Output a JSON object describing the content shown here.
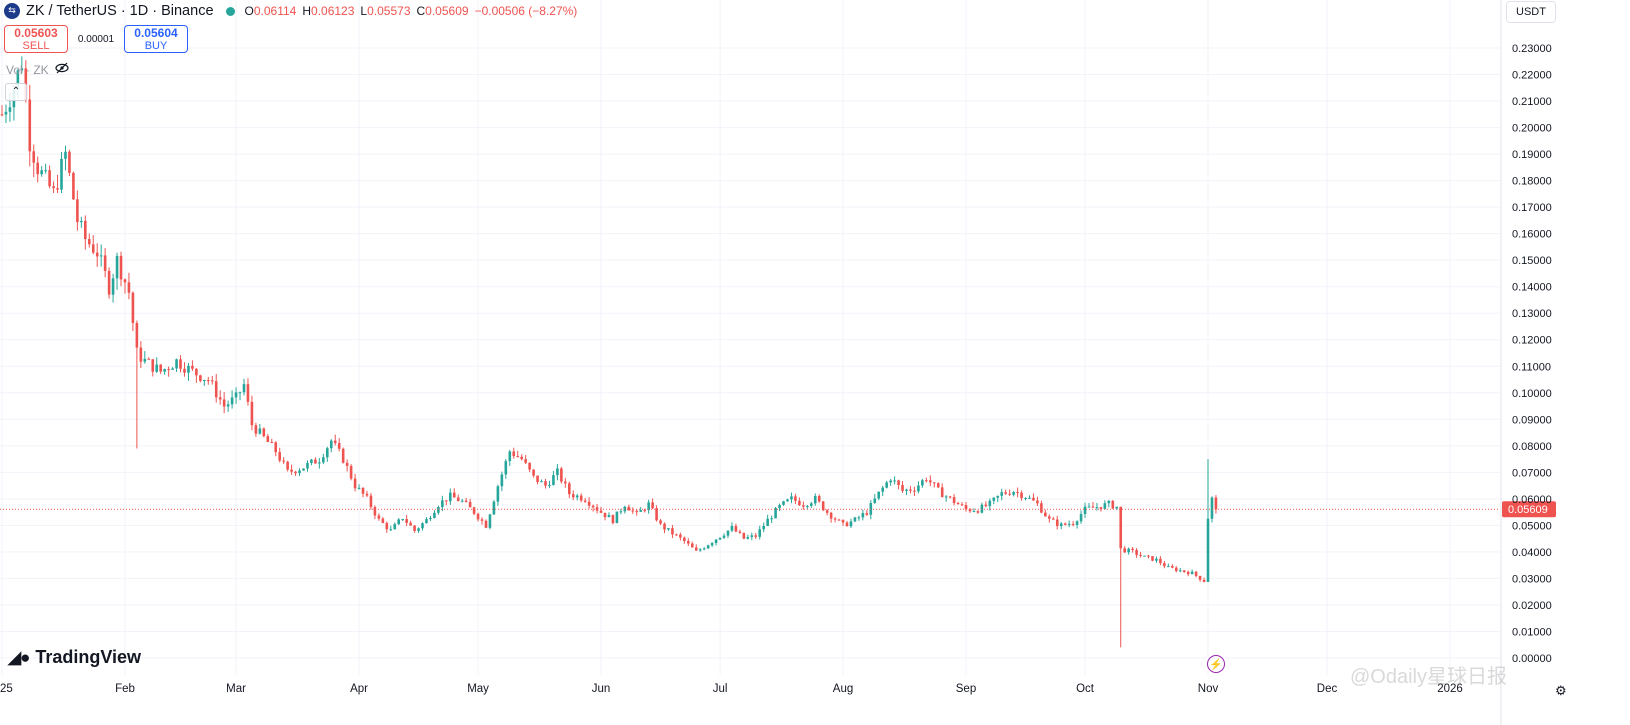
{
  "header": {
    "icon": "zk-coin-icon",
    "title": "ZK / TetherUS · 1D · Binance",
    "status_color": "#26a69a",
    "ohlc": {
      "o_label": "O",
      "o": "0.06114",
      "h_label": "H",
      "h": "0.06123",
      "l_label": "L",
      "l": "0.05573",
      "c_label": "C",
      "c": "0.05609",
      "change": "−0.00506 (−8.27%)"
    }
  },
  "trade": {
    "sell_price": "0.05603",
    "sell_label": "SELL",
    "spread": "0.00001",
    "buy_price": "0.05604",
    "buy_label": "BUY"
  },
  "volume_label": "Vol · ZK",
  "currency": "USDT",
  "logo_text": "TradingView",
  "watermark": "@Odaily星球日报",
  "colors": {
    "up": "#26a69a",
    "down": "#ef5350",
    "grid": "#f0f3fa",
    "price_line": "#ef5350"
  },
  "chart_data": {
    "type": "candlestick",
    "title": "ZK / TetherUS · 1D · Binance",
    "y_axis": {
      "min": 0.0,
      "max": 0.24,
      "side": "right",
      "ticks": [
        "0.00000",
        "0.01000",
        "0.02000",
        "0.03000",
        "0.04000",
        "0.05000",
        "0.06000",
        "0.07000",
        "0.08000",
        "0.09000",
        "0.10000",
        "0.11000",
        "0.12000",
        "0.13000",
        "0.14000",
        "0.15000",
        "0.16000",
        "0.17000",
        "0.18000",
        "0.19000",
        "0.20000",
        "0.21000",
        "0.22000",
        "0.23000"
      ]
    },
    "x_axis": {
      "ticks": [
        "25",
        "Feb",
        "Mar",
        "Apr",
        "May",
        "Jun",
        "Jul",
        "Aug",
        "Sep",
        "Oct",
        "Nov",
        "Dec",
        "2026"
      ]
    },
    "last_price": 0.05609,
    "last_price_label": "0.05609",
    "grid": true,
    "close_path": [
      [
        "2025-01-01",
        0.205
      ],
      [
        "2025-01-04",
        0.215
      ],
      [
        "2025-01-06",
        0.225
      ],
      [
        "2025-01-08",
        0.195
      ],
      [
        "2025-01-10",
        0.185
      ],
      [
        "2025-01-14",
        0.175
      ],
      [
        "2025-01-17",
        0.19
      ],
      [
        "2025-01-20",
        0.165
      ],
      [
        "2025-01-22",
        0.158
      ],
      [
        "2025-01-25",
        0.153
      ],
      [
        "2025-01-28",
        0.14
      ],
      [
        "2025-01-30",
        0.15
      ],
      [
        "2025-02-02",
        0.138
      ],
      [
        "2025-02-04",
        0.115
      ],
      [
        "2025-02-06",
        0.112
      ],
      [
        "2025-02-10",
        0.108
      ],
      [
        "2025-02-14",
        0.112
      ],
      [
        "2025-02-18",
        0.108
      ],
      [
        "2025-02-22",
        0.105
      ],
      [
        "2025-02-26",
        0.095
      ],
      [
        "2025-03-01",
        0.098
      ],
      [
        "2025-03-03",
        0.103
      ],
      [
        "2025-03-05",
        0.088
      ],
      [
        "2025-03-08",
        0.083
      ],
      [
        "2025-03-11",
        0.078
      ],
      [
        "2025-03-14",
        0.07
      ],
      [
        "2025-03-18",
        0.072
      ],
      [
        "2025-03-22",
        0.075
      ],
      [
        "2025-03-25",
        0.082
      ],
      [
        "2025-03-28",
        0.075
      ],
      [
        "2025-03-31",
        0.065
      ],
      [
        "2025-04-03",
        0.06
      ],
      [
        "2025-04-06",
        0.052
      ],
      [
        "2025-04-09",
        0.048
      ],
      [
        "2025-04-12",
        0.053
      ],
      [
        "2025-04-15",
        0.048
      ],
      [
        "2025-04-18",
        0.052
      ],
      [
        "2025-04-21",
        0.058
      ],
      [
        "2025-04-24",
        0.061
      ],
      [
        "2025-04-27",
        0.059
      ],
      [
        "2025-04-30",
        0.055
      ],
      [
        "2025-05-03",
        0.05
      ],
      [
        "2025-05-06",
        0.065
      ],
      [
        "2025-05-09",
        0.078
      ],
      [
        "2025-05-12",
        0.075
      ],
      [
        "2025-05-15",
        0.068
      ],
      [
        "2025-05-18",
        0.065
      ],
      [
        "2025-05-21",
        0.07
      ],
      [
        "2025-05-24",
        0.062
      ],
      [
        "2025-05-28",
        0.06
      ],
      [
        "2025-06-01",
        0.055
      ],
      [
        "2025-06-04",
        0.052
      ],
      [
        "2025-06-07",
        0.058
      ],
      [
        "2025-06-10",
        0.054
      ],
      [
        "2025-06-13",
        0.058
      ],
      [
        "2025-06-16",
        0.05
      ],
      [
        "2025-06-19",
        0.047
      ],
      [
        "2025-06-22",
        0.044
      ],
      [
        "2025-06-25",
        0.04
      ],
      [
        "2025-06-28",
        0.043
      ],
      [
        "2025-07-01",
        0.046
      ],
      [
        "2025-07-04",
        0.049
      ],
      [
        "2025-07-07",
        0.045
      ],
      [
        "2025-07-10",
        0.046
      ],
      [
        "2025-07-13",
        0.052
      ],
      [
        "2025-07-16",
        0.057
      ],
      [
        "2025-07-19",
        0.06
      ],
      [
        "2025-07-22",
        0.058
      ],
      [
        "2025-07-25",
        0.06
      ],
      [
        "2025-07-28",
        0.055
      ],
      [
        "2025-08-01",
        0.05
      ],
      [
        "2025-08-04",
        0.052
      ],
      [
        "2025-08-07",
        0.055
      ],
      [
        "2025-08-10",
        0.062
      ],
      [
        "2025-08-13",
        0.068
      ],
      [
        "2025-08-16",
        0.063
      ],
      [
        "2025-08-19",
        0.064
      ],
      [
        "2025-08-22",
        0.068
      ],
      [
        "2025-08-25",
        0.063
      ],
      [
        "2025-08-28",
        0.06
      ],
      [
        "2025-09-01",
        0.056
      ],
      [
        "2025-09-04",
        0.056
      ],
      [
        "2025-09-07",
        0.058
      ],
      [
        "2025-09-10",
        0.062
      ],
      [
        "2025-09-13",
        0.063
      ],
      [
        "2025-09-16",
        0.061
      ],
      [
        "2025-09-19",
        0.058
      ],
      [
        "2025-09-22",
        0.052
      ],
      [
        "2025-09-25",
        0.05
      ],
      [
        "2025-09-28",
        0.051
      ],
      [
        "2025-10-01",
        0.056
      ],
      [
        "2025-10-04",
        0.057
      ],
      [
        "2025-10-07",
        0.058
      ],
      [
        "2025-10-09",
        0.057
      ],
      [
        "2025-10-10",
        0.041
      ],
      [
        "2025-10-13",
        0.04
      ],
      [
        "2025-10-16",
        0.038
      ],
      [
        "2025-10-19",
        0.037
      ],
      [
        "2025-10-22",
        0.034
      ],
      [
        "2025-10-25",
        0.033
      ],
      [
        "2025-10-28",
        0.032
      ],
      [
        "2025-10-31",
        0.029
      ],
      [
        "2025-11-01",
        0.053
      ],
      [
        "2025-11-02",
        0.06
      ],
      [
        "2025-11-03",
        0.05609
      ]
    ],
    "notable_wicks": [
      {
        "date": "2025-02-04",
        "low": 0.079
      },
      {
        "date": "2025-10-10",
        "low": 0.004
      },
      {
        "date": "2025-11-01",
        "high": 0.075
      }
    ]
  }
}
